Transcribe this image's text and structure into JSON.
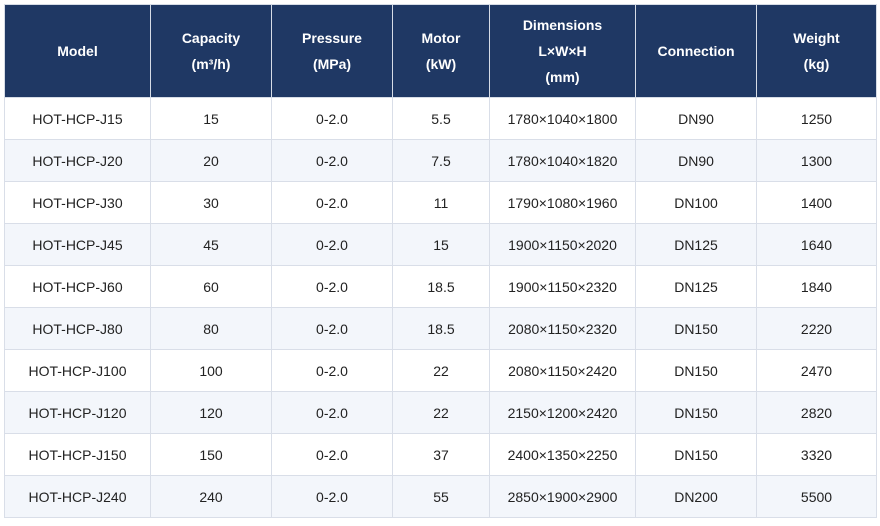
{
  "table": {
    "headers": [
      {
        "lines": [
          "Model"
        ]
      },
      {
        "lines": [
          "Capacity",
          "(m³/h)"
        ]
      },
      {
        "lines": [
          "Pressure",
          "(MPa)"
        ]
      },
      {
        "lines": [
          "Motor",
          "(kW)"
        ]
      },
      {
        "lines": [
          "Dimensions",
          "L×W×H",
          "(mm)"
        ]
      },
      {
        "lines": [
          "Connection"
        ]
      },
      {
        "lines": [
          "Weight",
          "(kg)"
        ]
      }
    ],
    "rows": [
      [
        "HOT-HCP-J15",
        "15",
        "0-2.0",
        "5.5",
        "1780×1040×1800",
        "DN90",
        "1250"
      ],
      [
        "HOT-HCP-J20",
        "20",
        "0-2.0",
        "7.5",
        "1780×1040×1820",
        "DN90",
        "1300"
      ],
      [
        "HOT-HCP-J30",
        "30",
        "0-2.0",
        "11",
        "1790×1080×1960",
        "DN100",
        "1400"
      ],
      [
        "HOT-HCP-J45",
        "45",
        "0-2.0",
        "15",
        "1900×1150×2020",
        "DN125",
        "1640"
      ],
      [
        "HOT-HCP-J60",
        "60",
        "0-2.0",
        "18.5",
        "1900×1150×2320",
        "DN125",
        "1840"
      ],
      [
        "HOT-HCP-J80",
        "80",
        "0-2.0",
        "18.5",
        "2080×1150×2320",
        "DN150",
        "2220"
      ],
      [
        "HOT-HCP-J100",
        "100",
        "0-2.0",
        "22",
        "2080×1150×2420",
        "DN150",
        "2470"
      ],
      [
        "HOT-HCP-J120",
        "120",
        "0-2.0",
        "22",
        "2150×1200×2420",
        "DN150",
        "2820"
      ],
      [
        "HOT-HCP-J150",
        "150",
        "0-2.0",
        "37",
        "2400×1350×2250",
        "DN150",
        "3320"
      ],
      [
        "HOT-HCP-J240",
        "240",
        "0-2.0",
        "55",
        "2850×1900×2900",
        "DN200",
        "5500"
      ]
    ]
  },
  "colors": {
    "header_bg": "#1f3864",
    "header_text": "#ffffff",
    "row_alt_bg": "#f3f6fb",
    "border": "#d9dee8"
  }
}
